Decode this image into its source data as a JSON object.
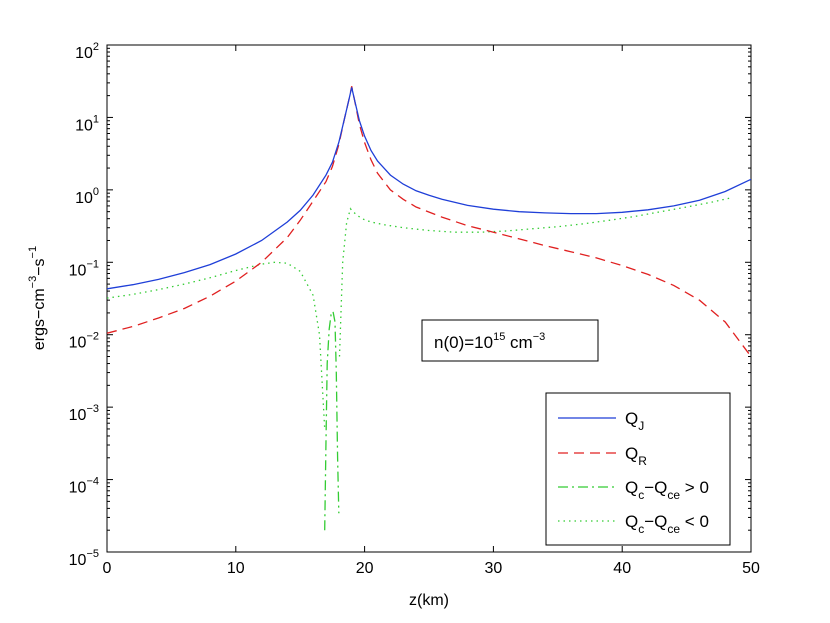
{
  "chart_data": {
    "type": "line",
    "xlabel": "z(km)",
    "ylabel": "ergs−cm−3−s−1",
    "ylabel_parts": {
      "base1": "ergs−cm",
      "exp1": "−3",
      "base2": "−s",
      "exp2": "−1"
    },
    "xlim": [
      0,
      50
    ],
    "ylim": [
      1e-05,
      100
    ],
    "yscale": "log",
    "xticks": [
      "0",
      "10",
      "20",
      "30",
      "40",
      "50"
    ],
    "yticks": [
      {
        "base": "10",
        "exp": "−5"
      },
      {
        "base": "10",
        "exp": "−4"
      },
      {
        "base": "10",
        "exp": "−3"
      },
      {
        "base": "10",
        "exp": "−2"
      },
      {
        "base": "10",
        "exp": "−1"
      },
      {
        "base": "10",
        "exp": "0"
      },
      {
        "base": "10",
        "exp": "1"
      },
      {
        "base": "10",
        "exp": "2"
      }
    ],
    "grid": false,
    "legend_position": "bottom-right",
    "annotation": {
      "base": "n(0)=10",
      "exp": "15",
      "unit": " cm",
      "unit_exp": "−3"
    },
    "series": [
      {
        "name": "QJ",
        "label_main": "Q",
        "label_sub": "J",
        "color": "#1f3fd8",
        "style": "solid",
        "x": [
          0,
          2,
          4,
          6,
          8,
          10,
          12,
          14,
          15,
          16,
          17,
          17.5,
          18,
          18.4,
          18.8,
          19,
          19.2,
          19.6,
          20,
          20.5,
          21,
          22,
          23,
          24,
          25,
          26,
          28,
          30,
          32,
          34,
          36,
          38,
          40,
          42,
          44,
          46,
          48,
          50
        ],
        "y": [
          0.043,
          0.049,
          0.058,
          0.072,
          0.093,
          0.13,
          0.2,
          0.36,
          0.52,
          0.85,
          1.6,
          2.4,
          4.5,
          9,
          18,
          26,
          18,
          9,
          5.5,
          3.5,
          2.5,
          1.6,
          1.2,
          0.97,
          0.84,
          0.74,
          0.61,
          0.54,
          0.5,
          0.48,
          0.47,
          0.47,
          0.49,
          0.53,
          0.6,
          0.72,
          0.95,
          1.4
        ]
      },
      {
        "name": "QR",
        "label_main": "Q",
        "label_sub": "R",
        "color": "#e02020",
        "style": "dashed",
        "x": [
          0,
          2,
          4,
          6,
          8,
          10,
          12,
          14,
          15,
          16,
          17,
          17.5,
          18,
          18.4,
          18.8,
          19,
          19.2,
          19.6,
          20,
          20.5,
          21,
          22,
          23,
          24,
          26,
          28,
          30,
          32,
          34,
          36,
          38,
          40,
          42,
          44,
          46,
          48,
          50
        ],
        "y": [
          0.0105,
          0.013,
          0.017,
          0.023,
          0.034,
          0.055,
          0.1,
          0.22,
          0.38,
          0.7,
          1.3,
          2.1,
          4.2,
          9,
          18,
          27,
          18,
          8,
          4.5,
          2.6,
          1.7,
          1.0,
          0.74,
          0.58,
          0.42,
          0.32,
          0.26,
          0.21,
          0.17,
          0.14,
          0.115,
          0.09,
          0.068,
          0.048,
          0.03,
          0.015,
          0.005
        ]
      },
      {
        "name": "Qc−Qce > 0",
        "label_main": "Q",
        "label_sub": "c",
        "label_mid": "−Q",
        "label_sub2": "ce",
        "label_tail": " > 0",
        "color": "#33cc33",
        "style": "dashdot",
        "x": [
          16.9,
          17.0,
          17.1,
          17.25,
          17.4,
          17.55,
          17.7,
          17.8,
          17.9,
          18.0,
          18.05
        ],
        "y": [
          2e-05,
          0.00035,
          0.004,
          0.012,
          0.019,
          0.021,
          0.015,
          0.003,
          0.0002,
          3.5e-05,
          3.5e-05
        ]
      },
      {
        "name": "Qc−Qce < 0",
        "label_main": "Q",
        "label_sub": "c",
        "label_mid": "−Q",
        "label_sub2": "ce",
        "label_tail": " < 0",
        "color": "#33cc33",
        "style": "dotted",
        "x": [
          0,
          2,
          4,
          6,
          8,
          10,
          12,
          13,
          14,
          15,
          16,
          16.5,
          16.9
        ],
        "y": [
          0.032,
          0.036,
          0.042,
          0.05,
          0.061,
          0.077,
          0.094,
          0.1,
          0.097,
          0.075,
          0.035,
          0.01,
          0.0005
        ],
        "segments": [
          {
            "x": [
              18.05,
              18.3,
              18.6,
              18.9,
              19.1,
              19.4,
              19.8,
              20.5,
              21.5,
              23,
              25,
              27,
              29,
              31,
              33,
              35,
              37,
              39,
              41,
              43,
              45,
              47,
              48.5
            ],
            "y": [
              0.005,
              0.1,
              0.35,
              0.55,
              0.5,
              0.45,
              0.4,
              0.36,
              0.33,
              0.3,
              0.275,
              0.26,
              0.26,
              0.27,
              0.29,
              0.31,
              0.34,
              0.38,
              0.43,
              0.5,
              0.58,
              0.68,
              0.78
            ]
          }
        ]
      }
    ]
  }
}
